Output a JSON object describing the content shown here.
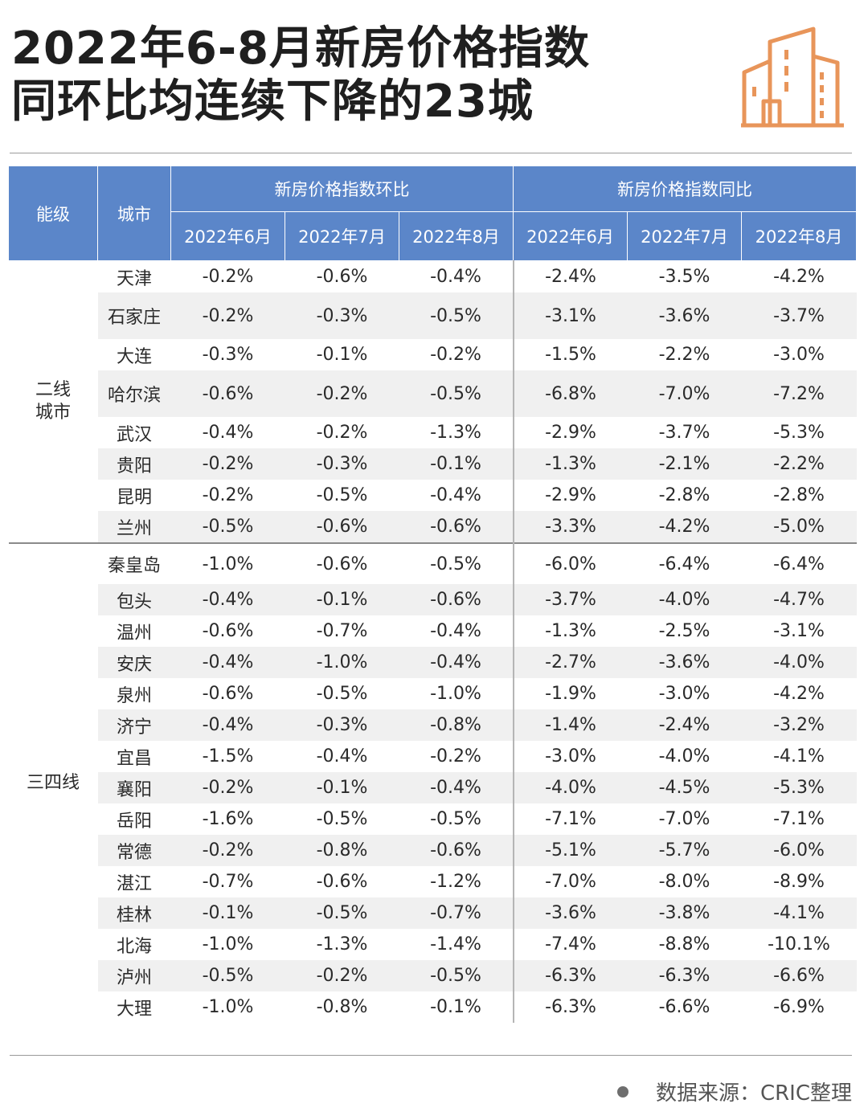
{
  "title": {
    "line1": "2022年6-8月新房价格指数",
    "line2": "同环比均连续下降的23城"
  },
  "colors": {
    "header": "#5b86c9",
    "icon": "#e8955a"
  },
  "icon": "buildings-icon",
  "table": {
    "col_tier": "能级",
    "col_city": "城市",
    "group_mom": "新房价格指数环比",
    "group_yoy": "新房价格指数同比",
    "months": [
      "2022年6月",
      "2022年7月",
      "2022年8月",
      "2022年6月",
      "2022年7月",
      "2022年8月"
    ],
    "tiers": [
      {
        "name": "二线\n城市",
        "rows": [
          {
            "city": "天津",
            "values": [
              "-0.2%",
              "-0.6%",
              "-0.4%",
              "-2.4%",
              "-3.5%",
              "-4.2%"
            ]
          },
          {
            "city": "石家庄",
            "values": [
              "-0.2%",
              "-0.3%",
              "-0.5%",
              "-3.1%",
              "-3.6%",
              "-3.7%"
            ]
          },
          {
            "city": "大连",
            "values": [
              "-0.3%",
              "-0.1%",
              "-0.2%",
              "-1.5%",
              "-2.2%",
              "-3.0%"
            ]
          },
          {
            "city": "哈尔滨",
            "values": [
              "-0.6%",
              "-0.2%",
              "-0.5%",
              "-6.8%",
              "-7.0%",
              "-7.2%"
            ]
          },
          {
            "city": "武汉",
            "values": [
              "-0.4%",
              "-0.2%",
              "-1.3%",
              "-2.9%",
              "-3.7%",
              "-5.3%"
            ]
          },
          {
            "city": "贵阳",
            "values": [
              "-0.2%",
              "-0.3%",
              "-0.1%",
              "-1.3%",
              "-2.1%",
              "-2.2%"
            ]
          },
          {
            "city": "昆明",
            "values": [
              "-0.2%",
              "-0.5%",
              "-0.4%",
              "-2.9%",
              "-2.8%",
              "-2.8%"
            ]
          },
          {
            "city": "兰州",
            "values": [
              "-0.5%",
              "-0.6%",
              "-0.6%",
              "-3.3%",
              "-4.2%",
              "-5.0%"
            ]
          }
        ]
      },
      {
        "name": "三四线",
        "rows": [
          {
            "city": "秦皇岛",
            "values": [
              "-1.0%",
              "-0.6%",
              "-0.5%",
              "-6.0%",
              "-6.4%",
              "-6.4%"
            ]
          },
          {
            "city": "包头",
            "values": [
              "-0.4%",
              "-0.1%",
              "-0.6%",
              "-3.7%",
              "-4.0%",
              "-4.7%"
            ]
          },
          {
            "city": "温州",
            "values": [
              "-0.6%",
              "-0.7%",
              "-0.4%",
              "-1.3%",
              "-2.5%",
              "-3.1%"
            ]
          },
          {
            "city": "安庆",
            "values": [
              "-0.4%",
              "-1.0%",
              "-0.4%",
              "-2.7%",
              "-3.6%",
              "-4.0%"
            ]
          },
          {
            "city": "泉州",
            "values": [
              "-0.6%",
              "-0.5%",
              "-1.0%",
              "-1.9%",
              "-3.0%",
              "-4.2%"
            ]
          },
          {
            "city": "济宁",
            "values": [
              "-0.4%",
              "-0.3%",
              "-0.8%",
              "-1.4%",
              "-2.4%",
              "-3.2%"
            ]
          },
          {
            "city": "宜昌",
            "values": [
              "-1.5%",
              "-0.4%",
              "-0.2%",
              "-3.0%",
              "-4.0%",
              "-4.1%"
            ]
          },
          {
            "city": "襄阳",
            "values": [
              "-0.2%",
              "-0.1%",
              "-0.4%",
              "-4.0%",
              "-4.5%",
              "-5.3%"
            ]
          },
          {
            "city": "岳阳",
            "values": [
              "-1.6%",
              "-0.5%",
              "-0.5%",
              "-7.1%",
              "-7.0%",
              "-7.1%"
            ]
          },
          {
            "city": "常德",
            "values": [
              "-0.2%",
              "-0.8%",
              "-0.6%",
              "-5.1%",
              "-5.7%",
              "-6.0%"
            ]
          },
          {
            "city": "湛江",
            "values": [
              "-0.7%",
              "-0.6%",
              "-1.2%",
              "-7.0%",
              "-8.0%",
              "-8.9%"
            ]
          },
          {
            "city": "桂林",
            "values": [
              "-0.1%",
              "-0.5%",
              "-0.7%",
              "-3.6%",
              "-3.8%",
              "-4.1%"
            ]
          },
          {
            "city": "北海",
            "values": [
              "-1.0%",
              "-1.3%",
              "-1.4%",
              "-7.4%",
              "-8.8%",
              "-10.1%"
            ]
          },
          {
            "city": "泸州",
            "values": [
              "-0.5%",
              "-0.2%",
              "-0.5%",
              "-6.3%",
              "-6.3%",
              "-6.6%"
            ]
          },
          {
            "city": "大理",
            "values": [
              "-1.0%",
              "-0.8%",
              "-0.1%",
              "-6.3%",
              "-6.6%",
              "-6.9%"
            ]
          }
        ]
      }
    ]
  },
  "source": "数据来源：CRIC整理"
}
